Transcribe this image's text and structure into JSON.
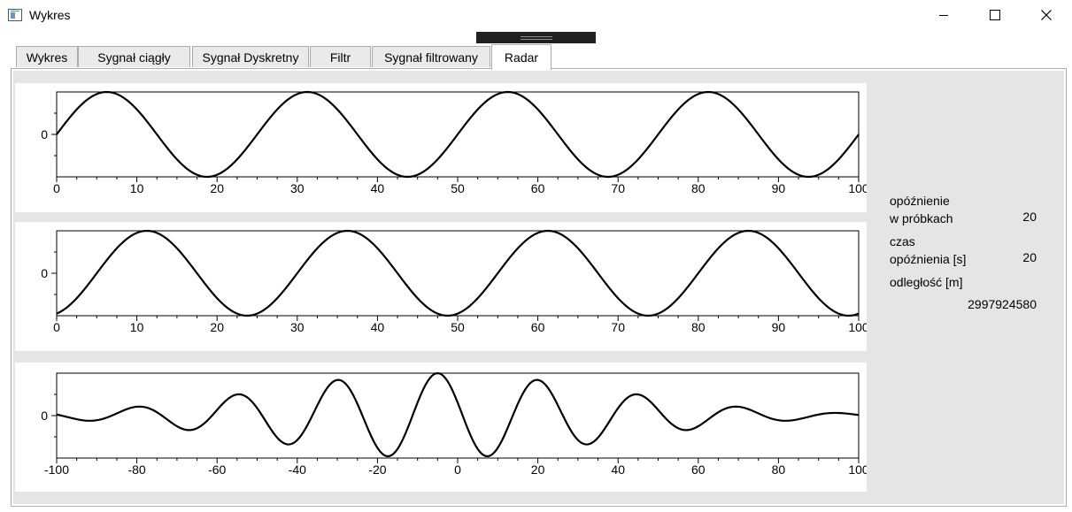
{
  "window": {
    "title": "Wykres",
    "icon": "chart-window-icon"
  },
  "tabs": [
    {
      "label": "Wykres",
      "active": false
    },
    {
      "label": "Sygnał ciągły",
      "active": false
    },
    {
      "label": "Sygnał Dyskretny",
      "active": false
    },
    {
      "label": "Filtr",
      "active": false
    },
    {
      "label": "Sygnał filtrowany",
      "active": false
    },
    {
      "label": "Radar",
      "active": true
    }
  ],
  "radar": {
    "delay_samples_label": "opóźnienie\nw próbkach",
    "delay_samples_value": "20",
    "delay_time_label": "czas\nopóźnienia [s]",
    "delay_time_value": "20",
    "distance_label": "odległość [m]",
    "distance_value": "2997924580"
  },
  "chart_data": [
    {
      "type": "line",
      "series": [
        {
          "function": "sin",
          "period": 25,
          "phase": 0,
          "amplitude": 1,
          "x_start": 0,
          "x_end": 100
        }
      ],
      "xlim": [
        0,
        100
      ],
      "ylim": [
        -1,
        1
      ],
      "x_ticks": [
        "0",
        "10",
        "20",
        "30",
        "40",
        "50",
        "60",
        "70",
        "80",
        "90",
        "100"
      ],
      "y_ticks": [
        "0"
      ],
      "color": "#000000"
    },
    {
      "type": "line",
      "series": [
        {
          "function": "sin",
          "period": 25,
          "phase": -5,
          "amplitude": 1,
          "x_start": 0,
          "x_end": 100
        }
      ],
      "xlim": [
        0,
        100
      ],
      "ylim": [
        -1,
        1
      ],
      "x_ticks": [
        "0",
        "10",
        "20",
        "30",
        "40",
        "50",
        "60",
        "70",
        "80",
        "90",
        "100"
      ],
      "y_ticks": [
        "0"
      ],
      "color": "#000000"
    },
    {
      "type": "line",
      "series": [
        {
          "function": "cross-correlation",
          "peak_x": -5,
          "peak_value": 1,
          "period": 25,
          "x_start": -100,
          "x_end": 100
        }
      ],
      "xlim": [
        -100,
        100
      ],
      "ylim": [
        -1,
        1
      ],
      "x_ticks": [
        "-100",
        "-80",
        "-60",
        "-40",
        "-20",
        "0",
        "20",
        "40",
        "60",
        "80",
        "100"
      ],
      "y_ticks": [
        "0"
      ],
      "color": "#000000"
    }
  ]
}
